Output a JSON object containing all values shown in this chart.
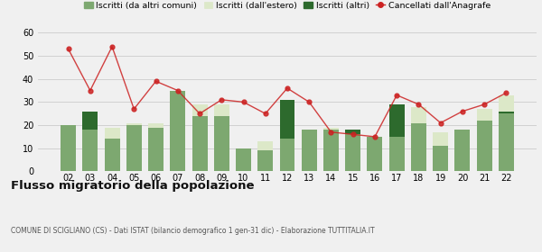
{
  "years": [
    "02",
    "03",
    "04",
    "05",
    "06",
    "07",
    "08",
    "09",
    "10",
    "11",
    "12",
    "13",
    "14",
    "15",
    "16",
    "17",
    "18",
    "19",
    "20",
    "21",
    "22"
  ],
  "iscritti_altri_comuni": [
    20,
    18,
    14,
    20,
    19,
    35,
    24,
    24,
    10,
    9,
    14,
    18,
    18,
    16,
    15,
    15,
    21,
    11,
    18,
    22,
    25
  ],
  "iscritti_estero": [
    0,
    1,
    5,
    1,
    2,
    0,
    5,
    5,
    0,
    4,
    0,
    0,
    1,
    1,
    0,
    0,
    7,
    6,
    0,
    5,
    8
  ],
  "iscritti_altri": [
    0,
    8,
    0,
    0,
    0,
    0,
    0,
    0,
    0,
    0,
    17,
    0,
    0,
    2,
    0,
    14,
    0,
    0,
    0,
    0,
    1
  ],
  "cancellati": [
    53,
    35,
    54,
    27,
    39,
    35,
    25,
    31,
    30,
    25,
    36,
    30,
    17,
    16,
    15,
    33,
    29,
    21,
    26,
    29,
    34
  ],
  "color_altri_comuni": "#7da870",
  "color_estero": "#dce8c8",
  "color_altri": "#2d6a2d",
  "color_cancellati": "#cc2222",
  "ylim": [
    0,
    60
  ],
  "yticks": [
    0,
    10,
    20,
    30,
    40,
    50,
    60
  ],
  "title": "Flusso migratorio della popolazione",
  "subtitle": "COMUNE DI SCIGLIANO (CS) - Dati ISTAT (bilancio demografico 1 gen-31 dic) - Elaborazione TUTTITALIA.IT",
  "legend_labels": [
    "Iscritti (da altri comuni)",
    "Iscritti (dall'estero)",
    "Iscritti (altri)",
    "Cancellati dall'Anagrafe"
  ],
  "bg_color": "#f0f0f0"
}
